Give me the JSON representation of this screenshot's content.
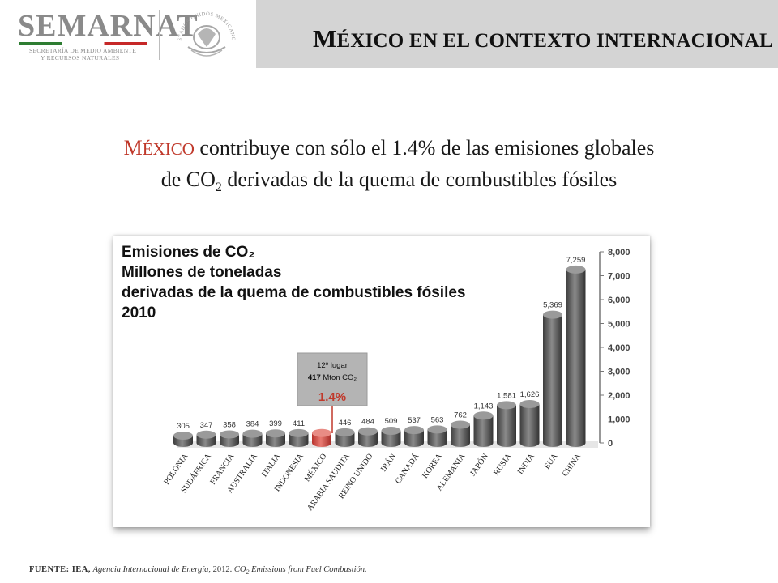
{
  "header": {
    "logo_text": "SEMARNAT",
    "logo_sub_1": "SECRETARÍA DE MEDIO AMBIENTE",
    "logo_sub_2": "Y RECURSOS NATURALES",
    "seal_text": "ESTADOS UNIDOS MEXICANOS",
    "title_initial": "M",
    "title_rest": "ÉXICO EN EL CONTEXTO INTERNACIONAL"
  },
  "headline": {
    "country_initial": "M",
    "country_rest": "ÉXICO",
    "line1_rest": " contribuye con sólo el 1.4% de las emisiones globales",
    "line2_a": "de CO",
    "line2_sub": "2",
    "line2_b": " derivadas de la quema de combustibles fósiles"
  },
  "chart_data": {
    "type": "bar",
    "title_lines": [
      "Emisiones de CO₂",
      "Millones de toneladas",
      "derivadas de la quema de combustibles fósiles",
      "2010"
    ],
    "categories": [
      "POLONIA",
      "SUDÁFRICA",
      "FRANCIA",
      "AUSTRALIA",
      "ITALIA",
      "INDONESIA",
      "MÉXICO",
      "ARABIA SAUDITA",
      "REINO UNIDO",
      "IRÁN",
      "CANADÁ",
      "KOREA",
      "ALEMANIA",
      "JAPÓN",
      "RUSIA",
      "INDIA",
      "EUA",
      "CHINA"
    ],
    "values": [
      305,
      347,
      358,
      384,
      399,
      411,
      417,
      446,
      484,
      509,
      537,
      563,
      762,
      1143,
      1581,
      1626,
      5369,
      7259
    ],
    "value_labels": [
      "305",
      "347",
      "358",
      "384",
      "399",
      "411",
      "",
      "446",
      "484",
      "509",
      "537",
      "563",
      "762",
      "1,143",
      "1,581",
      "1,626",
      "5,369",
      "7,259"
    ],
    "highlight_index": 6,
    "highlight_color": "#d9534f",
    "bar_color": "#5a5a5a",
    "callout": {
      "line1": "12º lugar",
      "line2_bold": "417",
      "line2_rest": " Mton CO₂",
      "percent": "1.4%"
    },
    "ylim": [
      0,
      8000
    ],
    "yticks": [
      "0",
      "1,000",
      "2,000",
      "3,000",
      "4,000",
      "5,000",
      "6,000",
      "7,000",
      "8,000"
    ],
    "axis_position": "right",
    "xlabel": "",
    "ylabel": ""
  },
  "footer": {
    "source_label": "FUENTE: IEA,",
    "source_italic": "Agencia Internacional de Energía,",
    "source_year": " 2012. ",
    "source_doc_a": "CO",
    "source_doc_sub": "2",
    "source_doc_b": " Emissions from Fuel Combustión."
  }
}
